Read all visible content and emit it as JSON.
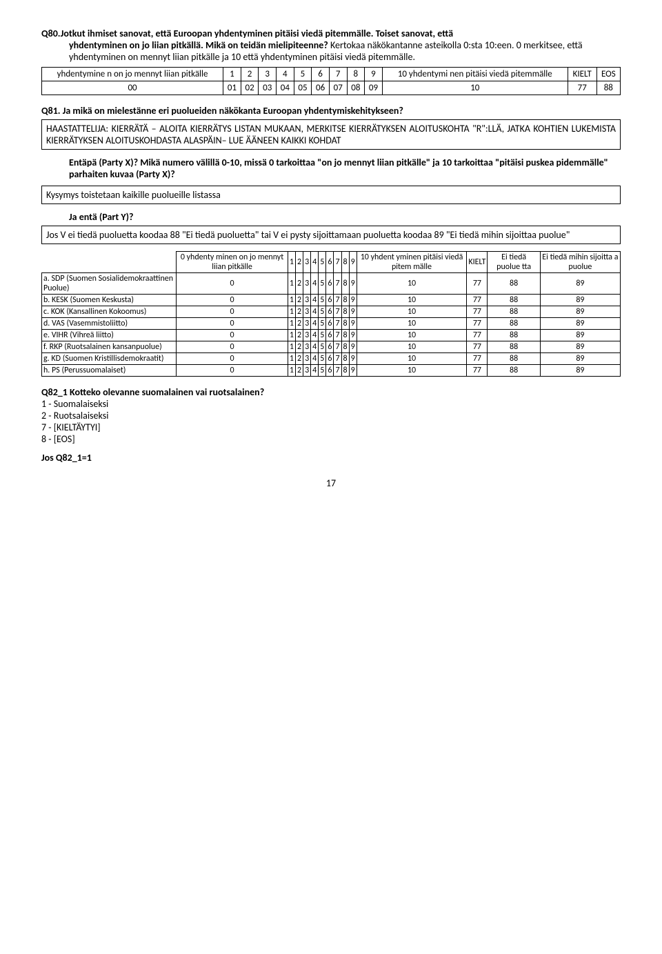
{
  "q80": {
    "title": "Q80.Jotkut ihmiset sanovat, että Euroopan yhdentyminen pitäisi viedä pitemmälle. Toiset sanovat, että yhdentyminen on jo liian pitkällä. Mikä on teidän mielipiteenne? Kertokaa näkökantanne asteikolla 0:sta 10:een. 0 merkitsee, että yhdentyminen on mennyt liian pitkälle ja 10 että yhdentyminen pitäisi viedä pitemmälle.",
    "table": {
      "left_label": "yhdentymine n on jo mennyt liian pitkälle",
      "cols": [
        "1",
        "2",
        "3",
        "4",
        "5",
        "6",
        "7",
        "8",
        "9"
      ],
      "right_label": "10 yhdentymi nen pitäisi viedä pitemmälle",
      "kielt": "KIELT",
      "eos": "EOS",
      "row2": [
        "00",
        "01",
        "02",
        "03",
        "04",
        "05",
        "06",
        "07",
        "08",
        "09",
        "10",
        "77",
        "88"
      ]
    }
  },
  "q81": {
    "title": "Q81. Ja mikä on mielestänne eri puolueiden näkökanta Euroopan yhdentymiskehitykseen?",
    "box1": "HAASTATTELIJA: KIERRÄTÄ – ALOITA KIERRÄTYS LISTAN MUKAAN, MERKITSE KIERRÄTYKSEN ALOITUSKOHTA \"R\":LLÄ, JATKA KOHTIEN LUKEMISTA KIERRÄTYKSEN ALOITUSKOHDASTA ALASPÄIN– LUE ÄÄNEEN KAIKKI KOHDAT",
    "p1": "Entäpä (Party X)? Mikä numero välillä 0-10, missä 0 tarkoittaa \"on jo mennyt liian pitkälle\" ja 10 tarkoittaa \"pitäisi puskea pidemmälle\" parhaiten kuvaa (Party X)?",
    "box2": "Kysymys toistetaan kaikille puolueille listassa",
    "p2": "Ja entä (Part Y)?",
    "box3": "Jos V ei tiedä puoluetta koodaa 88 \"Ei tiedä puoluetta\" tai V ei pysty sijoittamaan puoluetta koodaa 89 \"Ei tiedä mihin sijoittaa puolue\"",
    "table": {
      "h0": "0 yhdenty minen on jo mennyt liian pitkälle",
      "hcols": [
        "1",
        "2",
        "3",
        "4",
        "5",
        "6",
        "7",
        "8",
        "9"
      ],
      "h10": "10 yhdent yminen pitäisi viedä pitem mälle",
      "hkielt": "KIELT",
      "hei1": "Ei tiedä puolue tta",
      "hei2": "Ei tiedä mihin sijoitta a puolue",
      "rows": [
        {
          "label": "a. SDP (Suomen Sosialidemokraattinen Puolue)",
          "v": [
            "0",
            "1",
            "2",
            "3",
            "4",
            "5",
            "6",
            "7",
            "8",
            "9",
            "10",
            "77",
            "88",
            "89"
          ]
        },
        {
          "label": "b. KESK (Suomen Keskusta)",
          "v": [
            "0",
            "1",
            "2",
            "3",
            "4",
            "5",
            "6",
            "7",
            "8",
            "9",
            "10",
            "77",
            "88",
            "89"
          ]
        },
        {
          "label": "c. KOK (Kansallinen Kokoomus)",
          "v": [
            "0",
            "1",
            "2",
            "3",
            "4",
            "5",
            "6",
            "7",
            "8",
            "9",
            "10",
            "77",
            "88",
            "89"
          ]
        },
        {
          "label": "d. VAS (Vasemmistoliitto)",
          "v": [
            "0",
            "1",
            "2",
            "3",
            "4",
            "5",
            "6",
            "7",
            "8",
            "9",
            "10",
            "77",
            "88",
            "89"
          ]
        },
        {
          "label": "e. VIHR (Vihreä liitto)",
          "v": [
            "0",
            "1",
            "2",
            "3",
            "4",
            "5",
            "6",
            "7",
            "8",
            "9",
            "10",
            "77",
            "88",
            "89"
          ]
        },
        {
          "label": "f. RKP (Ruotsalainen kansanpuolue)",
          "v": [
            "0",
            "1",
            "2",
            "3",
            "4",
            "5",
            "6",
            "7",
            "8",
            "9",
            "10",
            "77",
            "88",
            "89"
          ]
        },
        {
          "label": "g. KD (Suomen Kristillisdemokraatit)",
          "v": [
            "0",
            "1",
            "2",
            "3",
            "4",
            "5",
            "6",
            "7",
            "8",
            "9",
            "10",
            "77",
            "88",
            "89"
          ]
        },
        {
          "label": "h. PS (Perussuomalaiset)",
          "v": [
            "0",
            "1",
            "2",
            "3",
            "4",
            "5",
            "6",
            "7",
            "8",
            "9",
            "10",
            "77",
            "88",
            "89"
          ]
        }
      ]
    }
  },
  "q82": {
    "title": "Q82_1 Kotteko olevanne suomalainen vai ruotsalainen?",
    "opts": [
      "1 - Suomalaiseksi",
      "2 - Ruotsalaiseksi",
      "7 - [KIELTÄYTYI]",
      "8 - [EOS]"
    ],
    "cond": "Jos Q82_1=1"
  },
  "page": "17"
}
